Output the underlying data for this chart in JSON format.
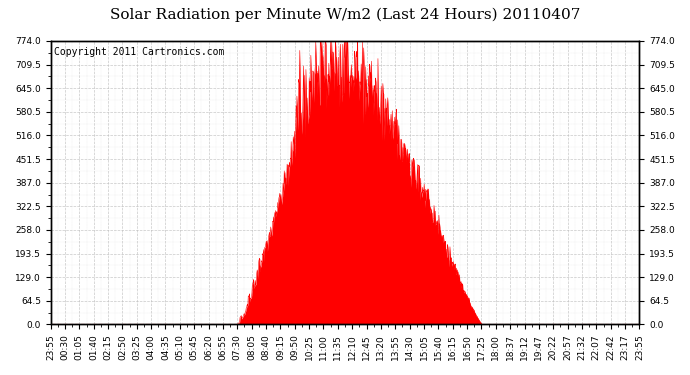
{
  "title": "Solar Radiation per Minute W/m2 (Last 24 Hours) 20110407",
  "copyright": "Copyright 2011 Cartronics.com",
  "y_ticks": [
    0.0,
    64.5,
    129.0,
    193.5,
    258.0,
    322.5,
    387.0,
    451.5,
    516.0,
    580.5,
    645.0,
    709.5,
    774.0
  ],
  "y_min": 0.0,
  "y_max": 774.0,
  "fill_color": "#FF0000",
  "line_color": "#FF0000",
  "bg_color": "#FFFFFF",
  "grid_color": "#BBBBBB",
  "dashed_line_color": "#FF0000",
  "x_labels": [
    "23:55",
    "00:30",
    "01:05",
    "01:40",
    "02:15",
    "02:50",
    "03:25",
    "04:00",
    "04:35",
    "05:10",
    "05:45",
    "06:20",
    "06:55",
    "07:30",
    "08:05",
    "08:40",
    "09:15",
    "09:50",
    "10:25",
    "11:00",
    "11:35",
    "12:10",
    "12:45",
    "13:20",
    "13:55",
    "14:30",
    "15:05",
    "15:40",
    "16:15",
    "16:50",
    "17:25",
    "18:00",
    "18:37",
    "19:12",
    "19:47",
    "20:22",
    "20:57",
    "21:32",
    "22:07",
    "22:42",
    "23:17",
    "23:55"
  ],
  "title_fontsize": 11,
  "copyright_fontsize": 7,
  "tick_fontsize": 6.5,
  "figsize": [
    6.9,
    3.75
  ],
  "dpi": 100,
  "sunrise_minute": 460,
  "sunset_minute": 1055,
  "peak_minute": 680,
  "peak_value": 774.0
}
